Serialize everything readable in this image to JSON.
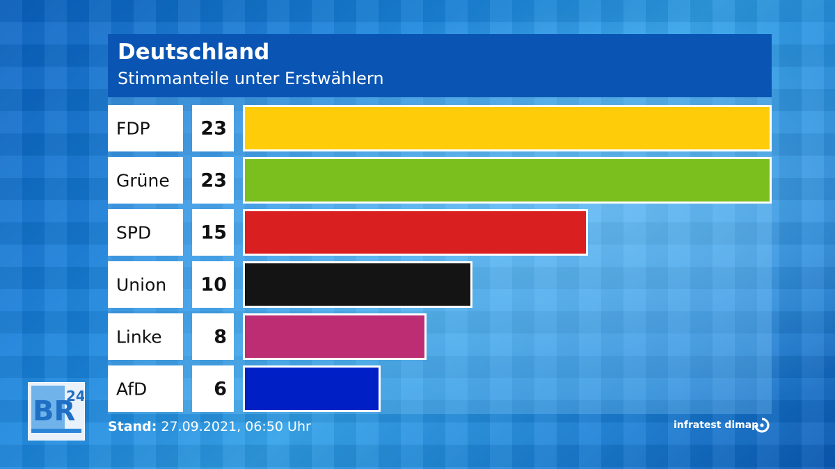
{
  "logo": {
    "text": "BR",
    "superscript": "24"
  },
  "source": "infratest dimap",
  "stand": {
    "label": "Stand:",
    "value": "27.09.2021, 06:50 Uhr"
  },
  "chart_data": {
    "type": "bar",
    "orientation": "horizontal",
    "title": "Deutschland",
    "subtitle": "Stimmanteile unter Erstwählern",
    "categories": [
      "FDP",
      "Grüne",
      "SPD",
      "Union",
      "Linke",
      "AfD"
    ],
    "values": [
      23,
      23,
      15,
      10,
      8,
      6
    ],
    "colors": [
      "#ffcc0a",
      "#7bbf1e",
      "#d91f1f",
      "#141414",
      "#bd2d73",
      "#0020c6"
    ],
    "xlim": [
      0,
      23
    ],
    "grid": false,
    "legend": "none"
  }
}
